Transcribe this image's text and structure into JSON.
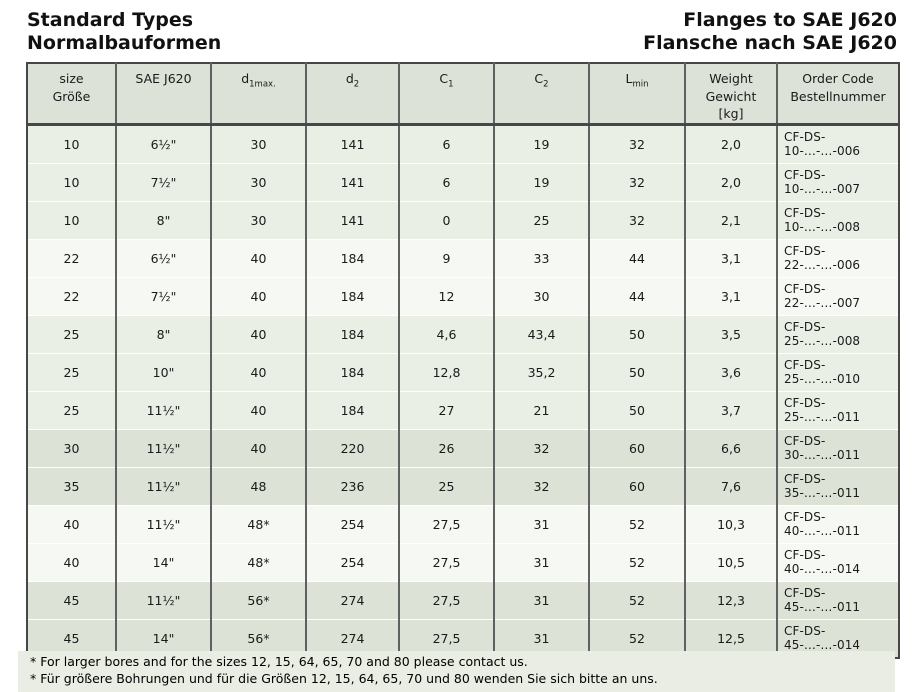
{
  "titles": {
    "left": [
      "Standard Types",
      "Normalbauformen"
    ],
    "right": [
      "Flanges to SAE J620",
      "Flansche nach SAE J620"
    ]
  },
  "table": {
    "columns": [
      {
        "lines": [
          "size",
          "Größe"
        ]
      },
      {
        "lines": [
          "SAE J620"
        ]
      },
      {
        "base": "d",
        "sub": "1max."
      },
      {
        "base": "d",
        "sub": "2"
      },
      {
        "base": "C",
        "sub": "1"
      },
      {
        "base": "C",
        "sub": "2"
      },
      {
        "base": "L",
        "sub": "min"
      },
      {
        "lines": [
          "Weight",
          "Gewicht",
          "[kg]"
        ]
      },
      {
        "lines": [
          "Order Code",
          "Bestellnummer"
        ]
      }
    ],
    "rows": [
      {
        "shade": "A",
        "cells": [
          "10",
          "6½\"",
          "30",
          "141",
          "6",
          "19",
          "32",
          "2,0",
          "CF-DS-10-…-…-006"
        ]
      },
      {
        "shade": "A",
        "cells": [
          "10",
          "7½\"",
          "30",
          "141",
          "6",
          "19",
          "32",
          "2,0",
          "CF-DS-10-…-…-007"
        ]
      },
      {
        "shade": "A",
        "cells": [
          "10",
          "8\"",
          "30",
          "141",
          "0",
          "25",
          "32",
          "2,1",
          "CF-DS-10-…-…-008"
        ]
      },
      {
        "shade": "B",
        "cells": [
          "22",
          "6½\"",
          "40",
          "184",
          "9",
          "33",
          "44",
          "3,1",
          "CF-DS-22-…-…-006"
        ]
      },
      {
        "shade": "B",
        "cells": [
          "22",
          "7½\"",
          "40",
          "184",
          "12",
          "30",
          "44",
          "3,1",
          "CF-DS-22-…-…-007"
        ]
      },
      {
        "shade": "A",
        "cells": [
          "25",
          "8\"",
          "40",
          "184",
          "4,6",
          "43,4",
          "50",
          "3,5",
          "CF-DS-25-…-…-008"
        ]
      },
      {
        "shade": "A",
        "cells": [
          "25",
          "10\"",
          "40",
          "184",
          "12,8",
          "35,2",
          "50",
          "3,6",
          "CF-DS-25-…-…-010"
        ]
      },
      {
        "shade": "A",
        "cells": [
          "25",
          "11½\"",
          "40",
          "184",
          "27",
          "21",
          "50",
          "3,7",
          "CF-DS-25-…-…-011"
        ]
      },
      {
        "shade": "C",
        "cells": [
          "30",
          "11½\"",
          "40",
          "220",
          "26",
          "32",
          "60",
          "6,6",
          "CF-DS-30-…-…-011"
        ]
      },
      {
        "shade": "C",
        "cells": [
          "35",
          "11½\"",
          "48",
          "236",
          "25",
          "32",
          "60",
          "7,6",
          "CF-DS-35-…-…-011"
        ]
      },
      {
        "shade": "B",
        "cells": [
          "40",
          "11½\"",
          "48*",
          "254",
          "27,5",
          "31",
          "52",
          "10,3",
          "CF-DS-40-…-…-011"
        ]
      },
      {
        "shade": "B",
        "cells": [
          "40",
          "14\"",
          "48*",
          "254",
          "27,5",
          "31",
          "52",
          "10,5",
          "CF-DS-40-…-…-014"
        ]
      },
      {
        "shade": "C",
        "cells": [
          "45",
          "11½\"",
          "56*",
          "274",
          "27,5",
          "31",
          "52",
          "12,3",
          "CF-DS-45-…-…-011"
        ]
      },
      {
        "shade": "C",
        "cells": [
          "45",
          "14\"",
          "56*",
          "274",
          "27,5",
          "31",
          "52",
          "12,5",
          "CF-DS-45-…-…-014"
        ]
      }
    ]
  },
  "footnotes": [
    "* For larger bores and for the sizes 12, 15, 64, 65, 70 and 80 please contact us.",
    "* Für größere Bohrungen und für die Größen 12, 15, 64, 65, 70 und 80 wenden Sie sich bitte an uns."
  ],
  "colors": {
    "header_bg": "#dce2d7",
    "shade_A": "#eaefe6",
    "shade_B": "#f6f8f3",
    "shade_C": "#dce2d5",
    "footnote_bg": "#e9ede3",
    "border": "#474747",
    "text": "#1a1a1a"
  }
}
